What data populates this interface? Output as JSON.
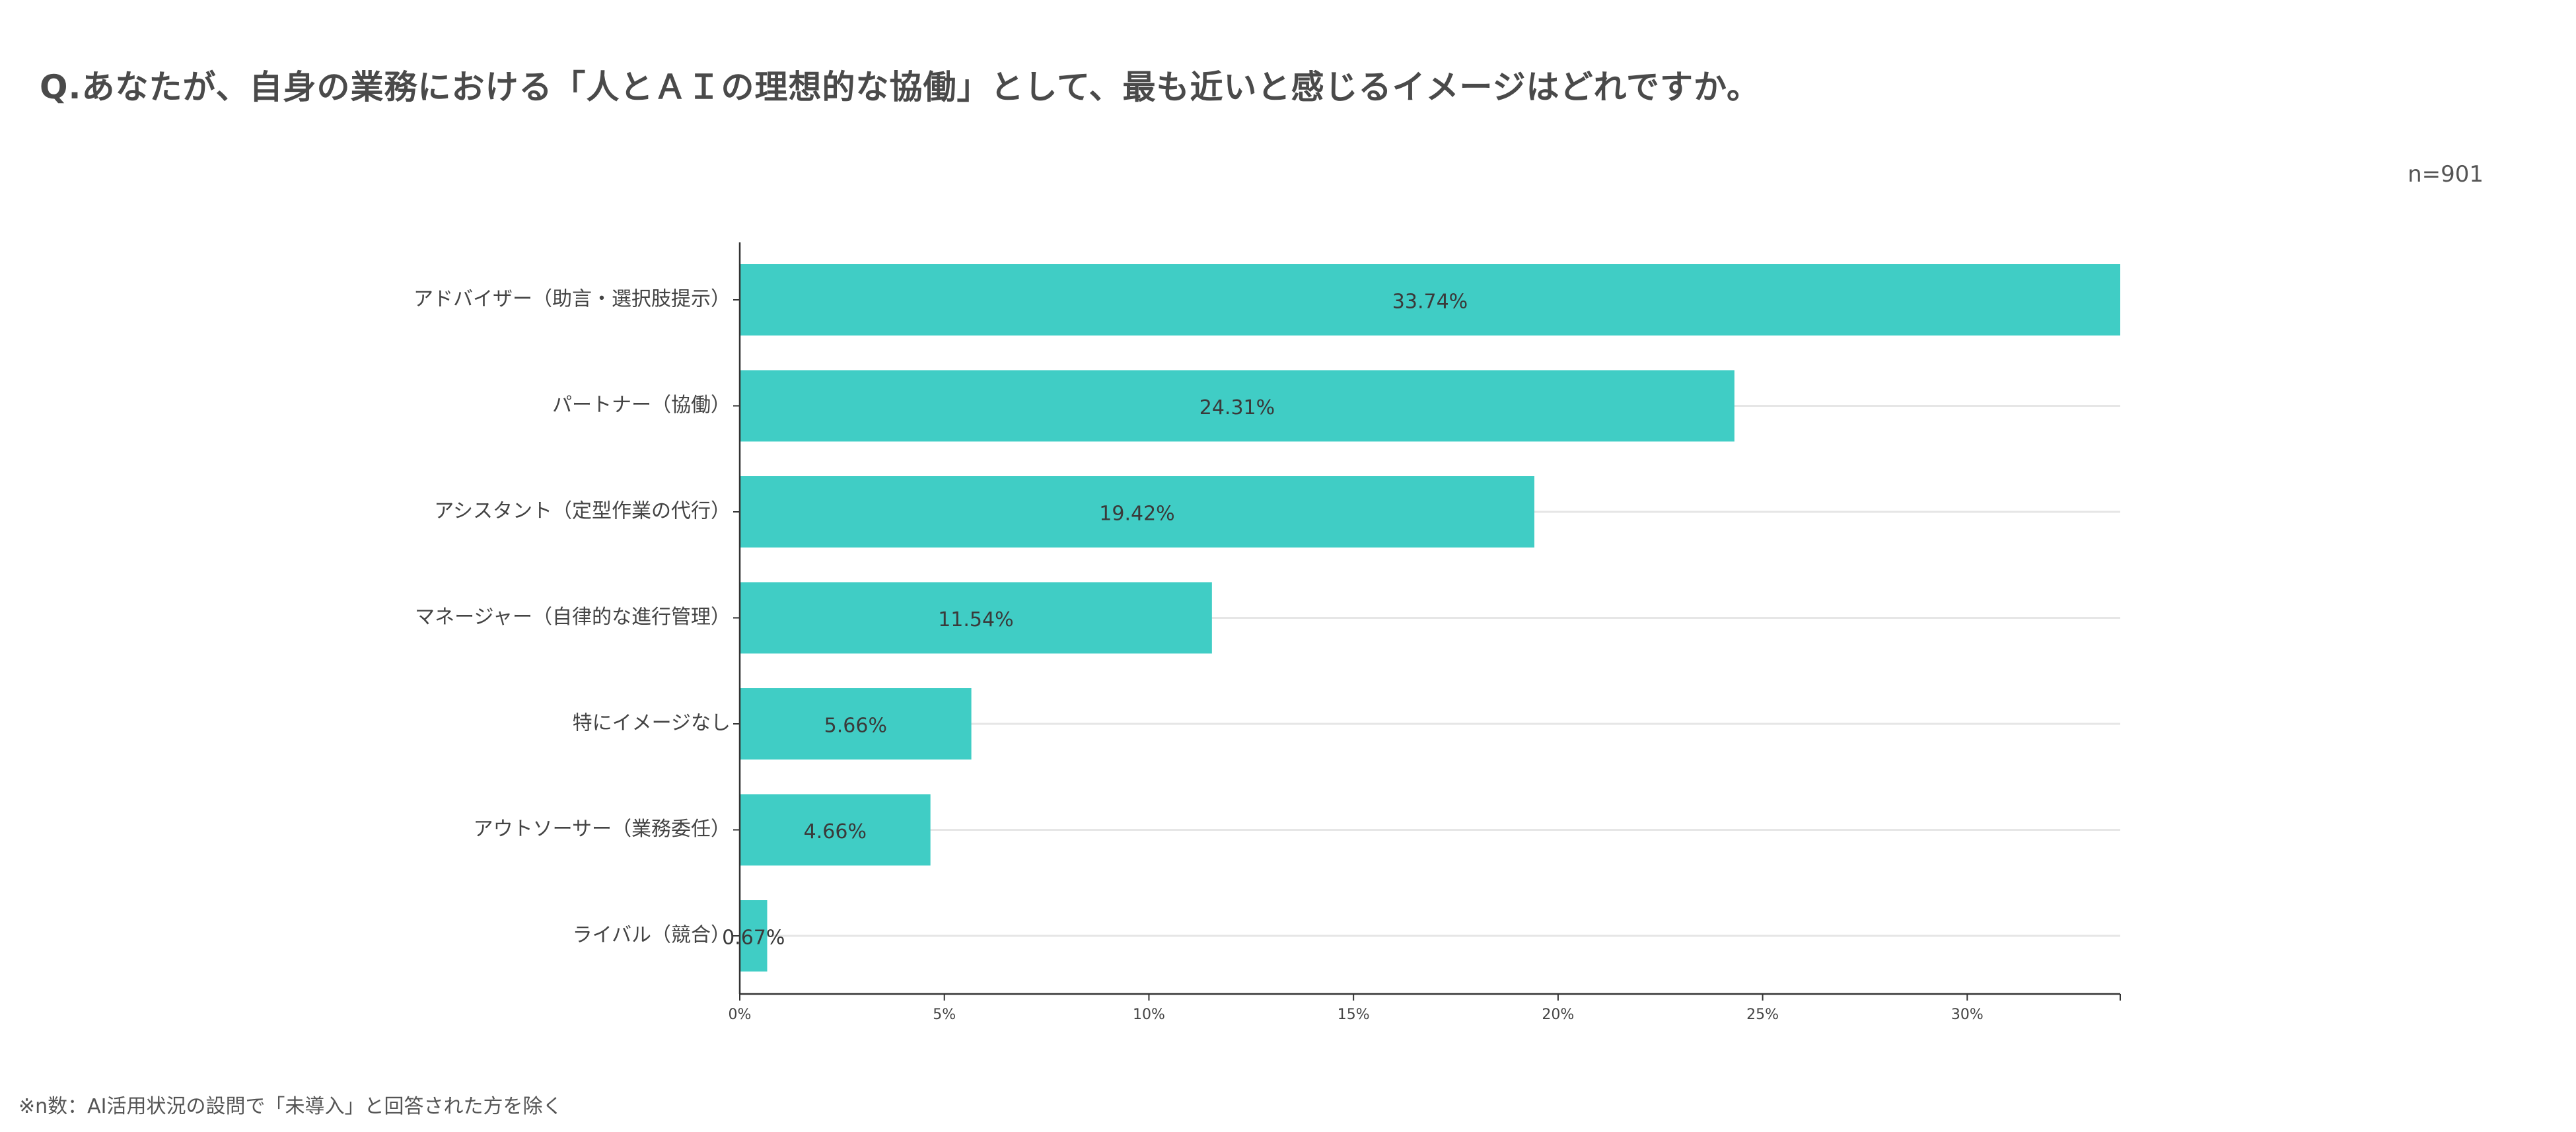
{
  "question_title": "Q.あなたが、自身の業務における「人とＡＩの理想的な協働」として、最も近いと感じるイメージはどれですか。",
  "sample_size": "n=901",
  "footnote": "※n数：AI活用状況の設問で「未導入」と回答された方を除く",
  "colors": {
    "bar": "#40cdc5",
    "grid": "#e6e6e6",
    "axis": "#333333"
  },
  "chart_data": {
    "type": "bar",
    "orientation": "horizontal",
    "categories": [
      "アドバイザー（助言・選択肢提示）",
      "パートナー（協働）",
      "アシスタント（定型作業の代行）",
      "マネージャー（自律的な進行管理）",
      "特にイメージなし",
      "アウトソーサー（業務委任）",
      "ライバル（競合）"
    ],
    "values": [
      33.74,
      24.31,
      19.42,
      11.54,
      5.66,
      4.66,
      0.67
    ],
    "value_labels": [
      "33.74%",
      "24.31%",
      "19.42%",
      "11.54%",
      "5.66%",
      "4.66%",
      "0.67%"
    ],
    "xlim": [
      0,
      33.74
    ],
    "x_ticks": [
      0,
      5,
      10,
      15,
      20,
      25,
      30
    ],
    "x_tick_labels": [
      "0%",
      "5%",
      "10%",
      "15%",
      "20%",
      "25%",
      "30%"
    ],
    "grid": true,
    "legend": "none"
  }
}
